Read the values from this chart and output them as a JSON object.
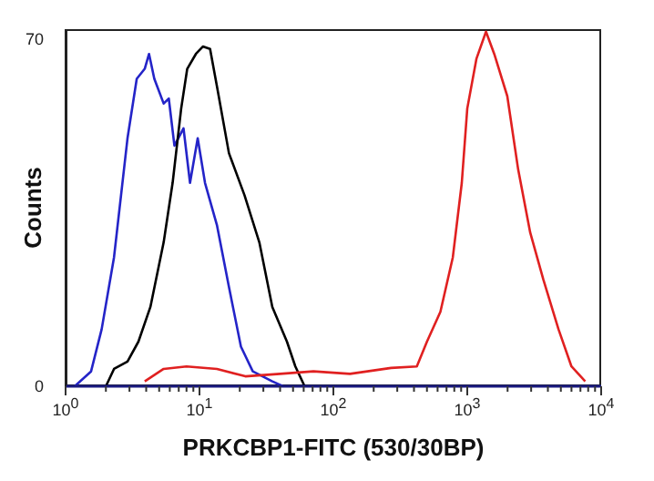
{
  "chart_data": {
    "type": "line",
    "xlabel": "PRKCBP1-FITC (530/30BP)",
    "ylabel": "Counts",
    "log": "x",
    "marker": "none",
    "line_style": "solid",
    "grid": false,
    "legend": false,
    "xlim": [
      1,
      10000
    ],
    "xticks": [
      {
        "value": 1,
        "label": "10$^{0}$"
      },
      {
        "value": 2,
        "label": null
      },
      {
        "value": 3,
        "label": null
      },
      {
        "value": 4,
        "label": null
      },
      {
        "value": 5,
        "label": null
      },
      {
        "value": 6,
        "label": null
      },
      {
        "value": 7,
        "label": null
      },
      {
        "value": 8,
        "label": null
      },
      {
        "value": 9,
        "label": null
      },
      {
        "value": 10,
        "label": "10$^{1}$"
      },
      {
        "value": 20,
        "label": null
      },
      {
        "value": 30,
        "label": null
      },
      {
        "value": 40,
        "label": null
      },
      {
        "value": 50,
        "label": null
      },
      {
        "value": 60,
        "label": null
      },
      {
        "value": 70,
        "label": null
      },
      {
        "value": 80,
        "label": null
      },
      {
        "value": 90,
        "label": null
      },
      {
        "value": 100,
        "label": "10$^{2}$"
      },
      {
        "value": 200,
        "label": null
      },
      {
        "value": 300,
        "label": null
      },
      {
        "value": 400,
        "label": null
      },
      {
        "value": 500,
        "label": null
      },
      {
        "value": 600,
        "label": null
      },
      {
        "value": 700,
        "label": null
      },
      {
        "value": 800,
        "label": null
      },
      {
        "value": 900,
        "label": null
      },
      {
        "value": 1000,
        "label": "10$^{3}$"
      },
      {
        "value": 2000,
        "label": null
      },
      {
        "value": 3000,
        "label": null
      },
      {
        "value": 4000,
        "label": null
      },
      {
        "value": 5000,
        "label": null
      },
      {
        "value": 6000,
        "label": null
      },
      {
        "value": 7000,
        "label": null
      },
      {
        "value": 8000,
        "label": null
      },
      {
        "value": 9000,
        "label": null
      },
      {
        "value": 10000,
        "label": "10$^{4}$"
      }
    ],
    "ylim": [
      0,
      72
    ],
    "yticks": [
      0,
      70
    ],
    "series": [
      {
        "color": "#2424c8",
        "x": [
          1.17,
          1.55,
          1.86,
          2.3,
          2.9,
          3.4,
          3.9,
          4.2,
          4.6,
          5.4,
          5.9,
          6.5,
          7.6,
          8.5,
          9.7,
          11,
          13.5,
          16.6,
          20.4,
          25,
          35,
          42
        ],
        "values": [
          0,
          3,
          11.5,
          26,
          50,
          62,
          64,
          67,
          62,
          57,
          58,
          48.5,
          52,
          41,
          50,
          41,
          32.5,
          20,
          8,
          3,
          1,
          0
        ]
      },
      {
        "color": "#000000",
        "x": [
          2,
          2.3,
          2.9,
          3.5,
          4.3,
          5.4,
          6.3,
          7.3,
          8.1,
          9.4,
          10.6,
          12,
          13.6,
          16.6,
          21.7,
          28,
          35,
          45,
          52,
          61
        ],
        "values": [
          0,
          3.5,
          5,
          9,
          16,
          29,
          41,
          56,
          64,
          67,
          68.5,
          68,
          60,
          47,
          38.5,
          29,
          16,
          9,
          4,
          0
        ]
      },
      {
        "color": "#e02020",
        "x": [
          3.9,
          5.4,
          8,
          13.5,
          22,
          40,
          71,
          133,
          270,
          420,
          500,
          630,
          780,
          910,
          1000,
          1170,
          1380,
          1590,
          1990,
          2400,
          2950,
          3700,
          4800,
          6000,
          7600
        ],
        "values": [
          1,
          3.5,
          4,
          3.5,
          2,
          2.5,
          3,
          2.5,
          3.7,
          4,
          9,
          15,
          26,
          41,
          56,
          66,
          71.5,
          67,
          58.5,
          43.7,
          31,
          21.5,
          11.5,
          4,
          1
        ]
      }
    ]
  }
}
